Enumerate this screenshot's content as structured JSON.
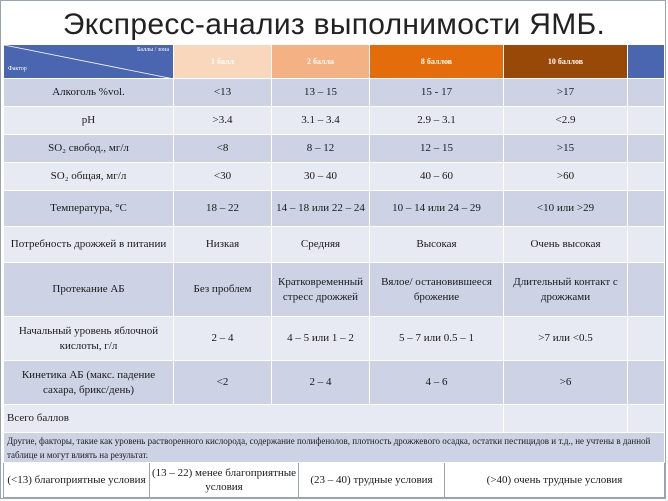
{
  "title": "Экспресс-анализ выполнимости ЯМБ.",
  "header": {
    "corner_top": "Баллы / зона",
    "corner_bottom": "Фактор",
    "cols": [
      "1 балл",
      "2 балла",
      "8 баллов",
      "10 баллов"
    ]
  },
  "rows": [
    {
      "label": "Алкоголь %vol.",
      "cells": [
        "<13",
        "13 – 15",
        "15 - 17",
        ">17"
      ]
    },
    {
      "label": "pH",
      "cells": [
        ">3.4",
        "3.1 – 3.4",
        "2.9 – 3.1",
        "<2.9"
      ]
    },
    {
      "label": "SO₂ свобод., мг/л",
      "cells": [
        "<8",
        "8 – 12",
        "12 – 15",
        ">15"
      ]
    },
    {
      "label": "SO₂ общая, мг/л",
      "cells": [
        "<30",
        "30 – 40",
        "40 – 60",
        ">60"
      ]
    },
    {
      "label": "Температура, °C",
      "cells": [
        "18 – 22",
        "14 – 18 или 22 – 24",
        "10 – 14 или 24 – 29",
        "<10 или >29"
      ]
    },
    {
      "label": "Потребность дрожжей в питании",
      "cells": [
        "Низкая",
        "Средняя",
        "Высокая",
        "Очень высокая"
      ]
    },
    {
      "label": "Протекание АБ",
      "cells": [
        "Без проблем",
        "Кратковременный стресс дрожжей",
        "Вялое/ остановившееся брожение",
        "Длительный контакт с дрожжами"
      ]
    },
    {
      "label": "Начальный уровень яблочной кислоты, г/л",
      "cells": [
        "2 – 4",
        "4 – 5 или 1 – 2",
        "5 – 7 или 0.5 – 1",
        ">7 или <0.5"
      ]
    },
    {
      "label": "Кинетика АБ (макс. падение сахара, брикс/день)",
      "cells": [
        "<2",
        "2 – 4",
        "4 – 6",
        ">6"
      ]
    }
  ],
  "total_label": "Всего баллов",
  "note": "Другие, факторы, такие как уровень растворенного кислорода, содержание полифенолов, плотность дрожжевого осадка, остатки пестицидов и т.д., не учтены в данной таблице и могут влиять на результат.",
  "legend": [
    "(<13) благоприятные условия",
    "(13 – 22) менее благоприятные условия",
    "(23 – 40) трудные условия",
    "(>40) очень трудные условия"
  ]
}
